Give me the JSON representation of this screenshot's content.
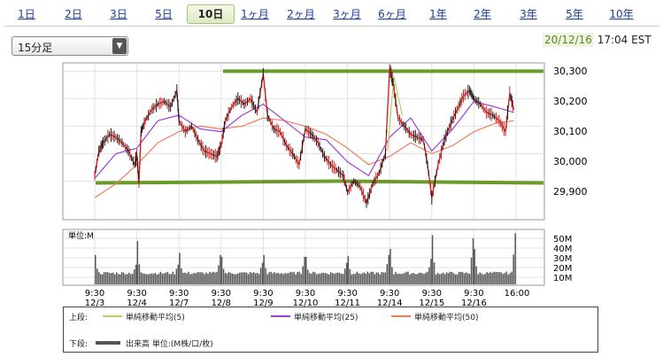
{
  "tabs": [
    {
      "label": "1日"
    },
    {
      "label": "2日"
    },
    {
      "label": "3日"
    },
    {
      "label": "5日"
    },
    {
      "label": "10日"
    },
    {
      "label": "1ヶ月"
    },
    {
      "label": "2ヶ月"
    },
    {
      "label": "3ヶ月"
    },
    {
      "label": "6ヶ月"
    },
    {
      "label": "1年"
    },
    {
      "label": "2年"
    },
    {
      "label": "3年"
    },
    {
      "label": "5年"
    },
    {
      "label": "10年"
    }
  ],
  "active_tab": "10日",
  "interval_select": {
    "value": "15分足"
  },
  "timestamp": {
    "date": "20/12/16",
    "time": "17:04 EST"
  },
  "colors": {
    "price": "#cc2222",
    "ma5": "#b4d36a",
    "ma25": "#a040d8",
    "ma50": "#e8805a",
    "resistance": "#6a9a2a",
    "volume": "#555555"
  },
  "legend": {
    "upper_label": "上段:",
    "lower_label": "下段:",
    "items": [
      {
        "label": "単純移動平均(5)"
      },
      {
        "label": "単純移動平均(25)"
      },
      {
        "label": "単純移動平均(50)"
      }
    ],
    "volume_label": "出来高 単位:(M株/口/枚)"
  },
  "chart_data": [
    {
      "type": "line",
      "ylim": [
        29760,
        30330
      ],
      "y_ticks": [
        "30,300",
        "30,200",
        "30,100",
        "30,000",
        "29,900"
      ],
      "x_ticks": [
        {
          "time": "9:30",
          "date": "12/3"
        },
        {
          "time": "9:30",
          "date": "12/4"
        },
        {
          "time": "9:30",
          "date": "12/7"
        },
        {
          "time": "9:30",
          "date": "12/8"
        },
        {
          "time": "9:30",
          "date": "12/9"
        },
        {
          "time": "9:30",
          "date": "12/10"
        },
        {
          "time": "9:30",
          "date": "12/11"
        },
        {
          "time": "9:30",
          "date": "12/14"
        },
        {
          "time": "9:30",
          "date": "12/15"
        },
        {
          "time": "9:30",
          "date": "12/16"
        },
        {
          "time": "16:00",
          "date": ""
        }
      ],
      "resistance_level": 30300,
      "support_level": 29900,
      "series": [
        {
          "key": "price",
          "points": [
            [
              0,
              29920
            ],
            [
              0.1,
              30010
            ],
            [
              0.2,
              30040
            ],
            [
              0.35,
              30070
            ],
            [
              0.5,
              30060
            ],
            [
              0.65,
              30040
            ],
            [
              0.8,
              30010
            ],
            [
              0.95,
              29960
            ],
            [
              1.0,
              30000
            ],
            [
              1.05,
              29890
            ],
            [
              1.1,
              30080
            ],
            [
              1.2,
              30120
            ],
            [
              1.35,
              30160
            ],
            [
              1.5,
              30180
            ],
            [
              1.65,
              30190
            ],
            [
              1.8,
              30170
            ],
            [
              1.95,
              30230
            ],
            [
              2.0,
              30120
            ],
            [
              2.15,
              30080
            ],
            [
              2.3,
              30100
            ],
            [
              2.45,
              30050
            ],
            [
              2.6,
              30010
            ],
            [
              2.75,
              30000
            ],
            [
              2.9,
              29990
            ],
            [
              3.0,
              30030
            ],
            [
              3.1,
              30120
            ],
            [
              3.25,
              30170
            ],
            [
              3.4,
              30200
            ],
            [
              3.55,
              30180
            ],
            [
              3.7,
              30200
            ],
            [
              3.85,
              30150
            ],
            [
              4.0,
              30290
            ],
            [
              4.1,
              30140
            ],
            [
              4.25,
              30090
            ],
            [
              4.4,
              30080
            ],
            [
              4.55,
              30030
            ],
            [
              4.7,
              30000
            ],
            [
              4.85,
              29960
            ],
            [
              5.0,
              30090
            ],
            [
              5.15,
              30070
            ],
            [
              5.3,
              30040
            ],
            [
              5.45,
              29990
            ],
            [
              5.6,
              29960
            ],
            [
              5.75,
              29940
            ],
            [
              5.9,
              29920
            ],
            [
              6.0,
              29860
            ],
            [
              6.15,
              29900
            ],
            [
              6.3,
              29880
            ],
            [
              6.45,
              29820
            ],
            [
              6.6,
              29890
            ],
            [
              6.75,
              29930
            ],
            [
              6.9,
              30000
            ],
            [
              7.0,
              30310
            ],
            [
              7.08,
              30260
            ],
            [
              7.2,
              30130
            ],
            [
              7.35,
              30100
            ],
            [
              7.5,
              30070
            ],
            [
              7.65,
              30060
            ],
            [
              7.8,
              30050
            ],
            [
              7.9,
              29960
            ],
            [
              8.0,
              29840
            ],
            [
              8.15,
              29960
            ],
            [
              8.3,
              30050
            ],
            [
              8.45,
              30110
            ],
            [
              8.6,
              30160
            ],
            [
              8.75,
              30210
            ],
            [
              8.9,
              30230
            ],
            [
              9.0,
              30200
            ],
            [
              9.15,
              30180
            ],
            [
              9.3,
              30150
            ],
            [
              9.45,
              30140
            ],
            [
              9.6,
              30120
            ],
            [
              9.75,
              30080
            ],
            [
              9.85,
              30220
            ],
            [
              9.95,
              30160
            ]
          ]
        },
        {
          "key": "ma5",
          "points": [
            [
              6.95,
              30010
            ],
            [
              7.1,
              30280
            ],
            [
              7.3,
              30140
            ]
          ]
        },
        {
          "key": "ma25",
          "points": [
            [
              0,
              29910
            ],
            [
              0.5,
              30000
            ],
            [
              1.0,
              30020
            ],
            [
              1.5,
              30120
            ],
            [
              2.0,
              30140
            ],
            [
              2.5,
              30090
            ],
            [
              3.0,
              30080
            ],
            [
              3.5,
              30140
            ],
            [
              4.0,
              30180
            ],
            [
              4.5,
              30120
            ],
            [
              5.0,
              30060
            ],
            [
              5.5,
              30050
            ],
            [
              6.0,
              29970
            ],
            [
              6.5,
              29920
            ],
            [
              7.0,
              30060
            ],
            [
              7.5,
              30130
            ],
            [
              8.0,
              30010
            ],
            [
              8.5,
              30090
            ],
            [
              9.0,
              30190
            ],
            [
              9.5,
              30170
            ],
            [
              9.95,
              30150
            ]
          ]
        },
        {
          "key": "ma50",
          "points": [
            [
              0,
              29840
            ],
            [
              0.5,
              29890
            ],
            [
              1.0,
              29960
            ],
            [
              1.5,
              30040
            ],
            [
              2.0,
              30080
            ],
            [
              2.5,
              30100
            ],
            [
              3.0,
              30090
            ],
            [
              3.5,
              30100
            ],
            [
              4.0,
              30130
            ],
            [
              4.5,
              30120
            ],
            [
              5.0,
              30100
            ],
            [
              5.5,
              30070
            ],
            [
              6.0,
              30020
            ],
            [
              6.5,
              29960
            ],
            [
              7.0,
              29990
            ],
            [
              7.5,
              30040
            ],
            [
              8.0,
              30000
            ],
            [
              8.5,
              30030
            ],
            [
              9.0,
              30080
            ],
            [
              9.5,
              30110
            ],
            [
              9.95,
              30120
            ]
          ]
        }
      ]
    },
    {
      "type": "bar",
      "ylabel": "単位:M",
      "ylim": [
        0,
        55
      ],
      "y_ticks": [
        "50M",
        "40M",
        "30M",
        "20M",
        "10M"
      ],
      "day_spikes": [
        {
          "open": 30,
          "close": 20
        },
        {
          "open": 44,
          "close": 20
        },
        {
          "open": 32,
          "close": 30
        },
        {
          "open": 28,
          "close": 22
        },
        {
          "open": 30,
          "close": 28
        },
        {
          "open": 28,
          "close": 22
        },
        {
          "open": 29,
          "close": 30
        },
        {
          "open": 36,
          "close": 26
        },
        {
          "open": 50,
          "close": 47
        },
        {
          "open": 36,
          "close": 52
        }
      ],
      "baseline": 10
    }
  ]
}
